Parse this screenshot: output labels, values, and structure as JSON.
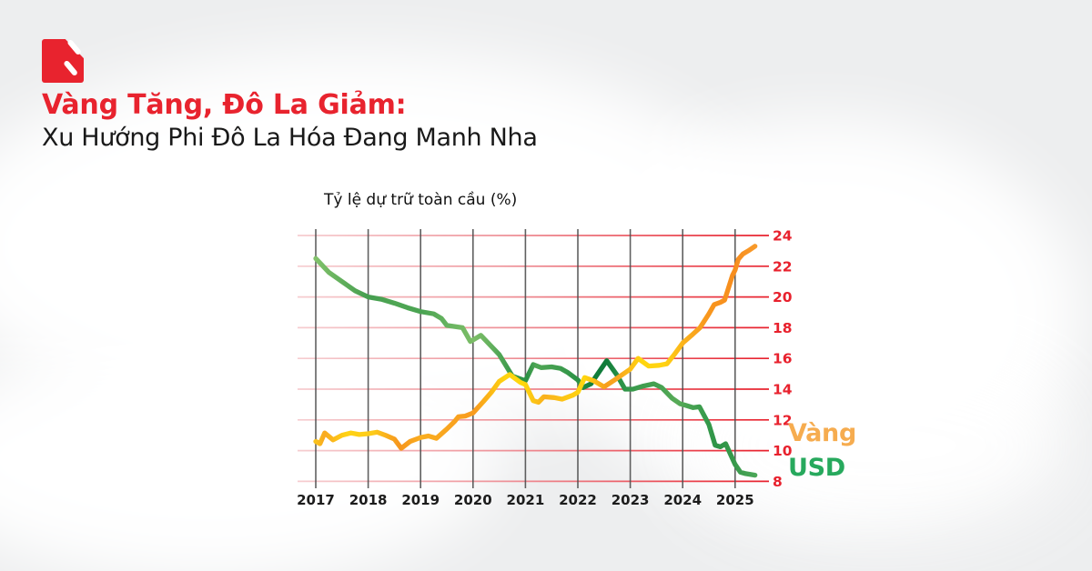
{
  "header": {
    "title": "Vàng Tăng, Đô La Giảm:",
    "subtitle": "Xu Hướng Phi Đô La Hóa Đang Manh Nha"
  },
  "colors": {
    "title_red": "#E8232E",
    "text_dark": "#191919",
    "axis_red": "#E8212D",
    "grid_vertical": "#4F4F4F",
    "legend_gold": "#F6AC4F",
    "legend_green": "#27A95D",
    "logo_red": "#E8232E"
  },
  "chart_data": {
    "type": "line",
    "title": "Tỷ lệ dự trữ toàn cầu (%)",
    "xlabel": "",
    "ylabel": "",
    "x_ticks": [
      2017,
      2018,
      2019,
      2020,
      2021,
      2022,
      2023,
      2024,
      2025
    ],
    "y_ticks": [
      8,
      10,
      12,
      14,
      16,
      18,
      20,
      22,
      24
    ],
    "xlim": [
      2017,
      2025.4
    ],
    "ylim": [
      8,
      24
    ],
    "grid": true,
    "legend_position": "right",
    "series": [
      {
        "name": "USD",
        "points": [
          [
            2017.0,
            22.5
          ],
          [
            2017.25,
            21.6
          ],
          [
            2017.5,
            21.0
          ],
          [
            2017.75,
            20.4
          ],
          [
            2018.0,
            20.0
          ],
          [
            2018.25,
            19.85
          ],
          [
            2018.5,
            19.6
          ],
          [
            2018.75,
            19.3
          ],
          [
            2019.0,
            19.05
          ],
          [
            2019.25,
            18.9
          ],
          [
            2019.4,
            18.6
          ],
          [
            2019.5,
            18.15
          ],
          [
            2019.8,
            18.0
          ],
          [
            2019.95,
            17.1
          ],
          [
            2020.15,
            17.5
          ],
          [
            2020.5,
            16.25
          ],
          [
            2020.75,
            14.85
          ],
          [
            2021.0,
            14.55
          ],
          [
            2021.15,
            15.6
          ],
          [
            2021.3,
            15.4
          ],
          [
            2021.5,
            15.45
          ],
          [
            2021.67,
            15.35
          ],
          [
            2021.8,
            15.1
          ],
          [
            2022.0,
            14.6
          ],
          [
            2022.1,
            14.1
          ],
          [
            2022.25,
            14.35
          ],
          [
            2022.55,
            15.85
          ],
          [
            2022.75,
            14.9
          ],
          [
            2022.9,
            14.0
          ],
          [
            2023.05,
            14.0
          ],
          [
            2023.25,
            14.2
          ],
          [
            2023.45,
            14.35
          ],
          [
            2023.6,
            14.1
          ],
          [
            2023.8,
            13.4
          ],
          [
            2023.95,
            13.05
          ],
          [
            2024.05,
            12.95
          ],
          [
            2024.2,
            12.8
          ],
          [
            2024.32,
            12.85
          ],
          [
            2024.5,
            11.7
          ],
          [
            2024.62,
            10.35
          ],
          [
            2024.72,
            10.25
          ],
          [
            2024.82,
            10.45
          ],
          [
            2025.0,
            9.1
          ],
          [
            2025.1,
            8.6
          ],
          [
            2025.2,
            8.5
          ],
          [
            2025.38,
            8.4
          ]
        ],
        "gradient": [
          [
            0,
            "#82C16B"
          ],
          [
            6,
            "#61AF5C"
          ],
          [
            12,
            "#459E4F"
          ],
          [
            18,
            "#4FA654"
          ],
          [
            24,
            "#4AA352"
          ],
          [
            30,
            "#68B460"
          ],
          [
            36,
            "#7CBD67"
          ],
          [
            40,
            "#62B05D"
          ],
          [
            45,
            "#339548"
          ],
          [
            48,
            "#2D9246"
          ],
          [
            50,
            "#4FA655"
          ],
          [
            55,
            "#3F9D4E"
          ],
          [
            60,
            "#2A9045"
          ],
          [
            63,
            "#117D3B"
          ],
          [
            66,
            "#0F7C3A"
          ],
          [
            69,
            "#2B9146"
          ],
          [
            73,
            "#3D9C4D"
          ],
          [
            78,
            "#45A151"
          ],
          [
            82,
            "#58AB58"
          ],
          [
            87,
            "#3E9E4E"
          ],
          [
            91,
            "#2E9447"
          ],
          [
            95,
            "#37994B"
          ],
          [
            100,
            "#4CA758"
          ]
        ]
      },
      {
        "name": "Vàng",
        "points": [
          [
            2017.0,
            10.6
          ],
          [
            2017.08,
            10.45
          ],
          [
            2017.17,
            11.15
          ],
          [
            2017.33,
            10.7
          ],
          [
            2017.5,
            11.0
          ],
          [
            2017.67,
            11.15
          ],
          [
            2017.83,
            11.05
          ],
          [
            2018.0,
            11.1
          ],
          [
            2018.17,
            11.2
          ],
          [
            2018.33,
            11.0
          ],
          [
            2018.5,
            10.75
          ],
          [
            2018.63,
            10.15
          ],
          [
            2018.8,
            10.6
          ],
          [
            2019.0,
            10.85
          ],
          [
            2019.15,
            10.95
          ],
          [
            2019.3,
            10.8
          ],
          [
            2019.5,
            11.4
          ],
          [
            2019.65,
            11.9
          ],
          [
            2019.72,
            12.2
          ],
          [
            2019.85,
            12.25
          ],
          [
            2020.0,
            12.45
          ],
          [
            2020.2,
            13.2
          ],
          [
            2020.35,
            13.8
          ],
          [
            2020.5,
            14.5
          ],
          [
            2020.7,
            14.95
          ],
          [
            2020.9,
            14.45
          ],
          [
            2021.0,
            14.3
          ],
          [
            2021.15,
            13.25
          ],
          [
            2021.25,
            13.15
          ],
          [
            2021.35,
            13.5
          ],
          [
            2021.55,
            13.45
          ],
          [
            2021.7,
            13.35
          ],
          [
            2021.9,
            13.6
          ],
          [
            2022.0,
            13.8
          ],
          [
            2022.13,
            14.75
          ],
          [
            2022.3,
            14.55
          ],
          [
            2022.5,
            14.15
          ],
          [
            2022.7,
            14.6
          ],
          [
            2023.0,
            15.3
          ],
          [
            2023.15,
            16.0
          ],
          [
            2023.35,
            15.5
          ],
          [
            2023.55,
            15.55
          ],
          [
            2023.7,
            15.65
          ],
          [
            2023.85,
            16.3
          ],
          [
            2024.0,
            17.0
          ],
          [
            2024.17,
            17.5
          ],
          [
            2024.33,
            18.0
          ],
          [
            2024.5,
            18.9
          ],
          [
            2024.6,
            19.5
          ],
          [
            2024.72,
            19.65
          ],
          [
            2024.8,
            19.8
          ],
          [
            2024.95,
            21.4
          ],
          [
            2025.0,
            21.75
          ],
          [
            2025.06,
            22.45
          ],
          [
            2025.15,
            22.8
          ],
          [
            2025.25,
            23.0
          ],
          [
            2025.38,
            23.3
          ]
        ],
        "gradient": [
          [
            0,
            "#F9C21C"
          ],
          [
            2,
            "#F9A920"
          ],
          [
            7,
            "#FFD314"
          ],
          [
            13,
            "#FDCB1A"
          ],
          [
            19,
            "#F6951E"
          ],
          [
            24,
            "#FAAE1F"
          ],
          [
            30,
            "#F9A51F"
          ],
          [
            36,
            "#F89B1E"
          ],
          [
            43,
            "#FED30F"
          ],
          [
            47,
            "#FFD80C"
          ],
          [
            52,
            "#F9B01E"
          ],
          [
            57,
            "#FDC714"
          ],
          [
            61,
            "#FFD60E"
          ],
          [
            66,
            "#F79E1C"
          ],
          [
            69,
            "#F9A81E"
          ],
          [
            74,
            "#FFD60E"
          ],
          [
            79,
            "#FFD313"
          ],
          [
            84,
            "#FBB01C"
          ],
          [
            89,
            "#F8971E"
          ],
          [
            95,
            "#F78D1E"
          ],
          [
            100,
            "#F89B2B"
          ]
        ]
      }
    ]
  },
  "legend": {
    "gold_label": "Vàng",
    "usd_label": "USD"
  }
}
